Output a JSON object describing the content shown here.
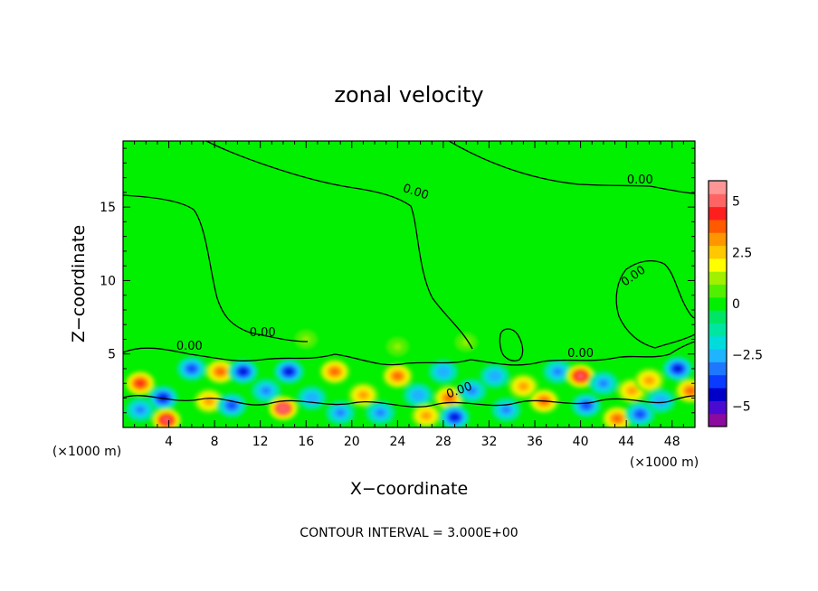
{
  "chart_data": {
    "type": "heatmap",
    "title": "zonal velocity",
    "xlabel": "X−coordinate",
    "ylabel": "Z−coordinate",
    "x_unit_left": "(×1000 m)",
    "x_unit_right": "(×1000 m)",
    "xlim": [
      0,
      50
    ],
    "ylim": [
      0,
      19.5
    ],
    "xticks": [
      4,
      8,
      12,
      16,
      20,
      24,
      28,
      32,
      36,
      40,
      44,
      48
    ],
    "xtick_labels": [
      "4",
      "8",
      "12",
      "16",
      "20",
      "24",
      "28",
      "32",
      "36",
      "40",
      "44",
      "48"
    ],
    "yticks": [
      5,
      10,
      15
    ],
    "ytick_labels": [
      "5",
      "10",
      "15"
    ],
    "colorbar": {
      "vmin": -6,
      "vmax": 6,
      "ticks": [
        5,
        2.5,
        0,
        -2.5,
        -5
      ],
      "tick_labels": [
        "5",
        "2.5",
        "0",
        "−2.5",
        "−5"
      ],
      "colors": [
        "#8c0aa0",
        "#4b0ad2",
        "#0000c8",
        "#0a3cff",
        "#1e78ff",
        "#1eb4ff",
        "#00dcdc",
        "#00e6a0",
        "#00e664",
        "#00f000",
        "#50f000",
        "#a0f000",
        "#ffff00",
        "#ffc800",
        "#ff9600",
        "#ff5a00",
        "#ff1e1e",
        "#ff6464",
        "#ff9696"
      ]
    },
    "contour_labels": [
      "0.00",
      "0.00",
      "0.00",
      "0.00",
      "0.00",
      "0.00",
      "0.00"
    ],
    "footer": "CONTOUR INTERVAL = 3.000E+00",
    "anomalies": [
      {
        "x": 1.5,
        "z": 3.0,
        "value": 4.5
      },
      {
        "x": 3.5,
        "z": 2.0,
        "value": -4.5
      },
      {
        "x": 1.5,
        "z": 1.2,
        "value": -3.5
      },
      {
        "x": 3.8,
        "z": 0.5,
        "value": 5.0
      },
      {
        "x": 6.0,
        "z": 4.0,
        "value": -4.0
      },
      {
        "x": 7.5,
        "z": 1.8,
        "value": 3.5
      },
      {
        "x": 8.5,
        "z": 3.8,
        "value": 4.0
      },
      {
        "x": 9.5,
        "z": 1.5,
        "value": -4.0
      },
      {
        "x": 10.5,
        "z": 3.8,
        "value": -4.5
      },
      {
        "x": 12.5,
        "z": 2.5,
        "value": -3.5
      },
      {
        "x": 14.5,
        "z": 3.8,
        "value": -4.5
      },
      {
        "x": 14.0,
        "z": 1.3,
        "value": 5.5
      },
      {
        "x": 16.5,
        "z": 2.0,
        "value": -3.0
      },
      {
        "x": 18.5,
        "z": 3.8,
        "value": 4.0
      },
      {
        "x": 19.0,
        "z": 1.0,
        "value": -3.5
      },
      {
        "x": 21.0,
        "z": 2.2,
        "value": 3.0
      },
      {
        "x": 22.5,
        "z": 1.0,
        "value": -3.5
      },
      {
        "x": 24.0,
        "z": 3.5,
        "value": 4.0
      },
      {
        "x": 25.8,
        "z": 2.2,
        "value": -3.0
      },
      {
        "x": 26.5,
        "z": 0.8,
        "value": 3.0
      },
      {
        "x": 28.0,
        "z": 3.8,
        "value": -3.0
      },
      {
        "x": 28.5,
        "z": 2.0,
        "value": 4.0
      },
      {
        "x": 29.0,
        "z": 0.7,
        "value": -4.5
      },
      {
        "x": 30.5,
        "z": 2.5,
        "value": -3.5
      },
      {
        "x": 32.5,
        "z": 3.5,
        "value": -3.0
      },
      {
        "x": 33.5,
        "z": 1.2,
        "value": -3.5
      },
      {
        "x": 35.0,
        "z": 2.8,
        "value": 3.0
      },
      {
        "x": 36.8,
        "z": 1.8,
        "value": 4.0
      },
      {
        "x": 38.0,
        "z": 3.8,
        "value": -3.5
      },
      {
        "x": 40.0,
        "z": 3.5,
        "value": 5.0
      },
      {
        "x": 40.5,
        "z": 1.5,
        "value": -4.0
      },
      {
        "x": 42.0,
        "z": 3.0,
        "value": -3.5
      },
      {
        "x": 43.2,
        "z": 0.6,
        "value": 4.0
      },
      {
        "x": 44.5,
        "z": 2.5,
        "value": 3.0
      },
      {
        "x": 45.2,
        "z": 0.9,
        "value": -4.0
      },
      {
        "x": 46.0,
        "z": 3.2,
        "value": 3.5
      },
      {
        "x": 47.0,
        "z": 1.8,
        "value": -3.0
      },
      {
        "x": 48.5,
        "z": 4.0,
        "value": -4.5
      },
      {
        "x": 49.6,
        "z": 2.5,
        "value": 4.0
      },
      {
        "x": 24.0,
        "z": 5.5,
        "value": 1.5
      },
      {
        "x": 30.0,
        "z": 5.8,
        "value": 1.5
      },
      {
        "x": 16.0,
        "z": 6.0,
        "value": 1.2
      }
    ]
  }
}
